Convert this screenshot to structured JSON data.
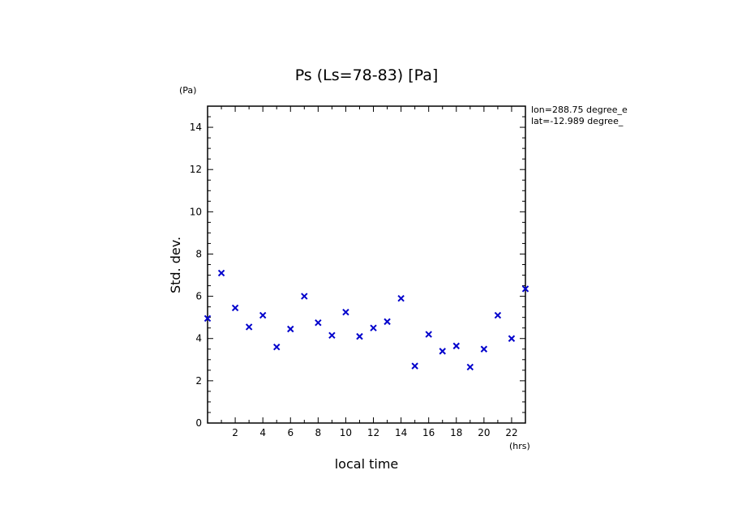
{
  "chart_data": {
    "type": "scatter",
    "title": "Ps (Ls=78-83) [Pa]",
    "xlabel": "local time",
    "ylabel": "Std. dev.",
    "x_unit": "(hrs)",
    "y_unit": "(Pa)",
    "xlim": [
      0,
      23
    ],
    "ylim": [
      0,
      15
    ],
    "x_ticks": [
      "2",
      "4",
      "6",
      "8",
      "10",
      "12",
      "14",
      "16",
      "18",
      "20",
      "22"
    ],
    "y_ticks": [
      "0",
      "2",
      "4",
      "6",
      "8",
      "10",
      "12",
      "14"
    ],
    "annotations": [
      "lon=288.75 degree_e",
      "lat=-12.989 degree_"
    ],
    "marker": "x",
    "marker_color": "#0000cc",
    "grid": false,
    "x": [
      0,
      1,
      2,
      3,
      4,
      5,
      6,
      7,
      8,
      9,
      10,
      11,
      12,
      13,
      14,
      15,
      16,
      17,
      18,
      19,
      20,
      21,
      22,
      23
    ],
    "y": [
      4.95,
      7.1,
      5.45,
      4.55,
      5.1,
      3.6,
      4.45,
      6.0,
      4.75,
      4.15,
      5.25,
      4.1,
      4.5,
      4.8,
      5.9,
      2.7,
      4.2,
      3.4,
      3.65,
      2.65,
      3.5,
      5.1,
      4.0,
      6.35
    ]
  }
}
